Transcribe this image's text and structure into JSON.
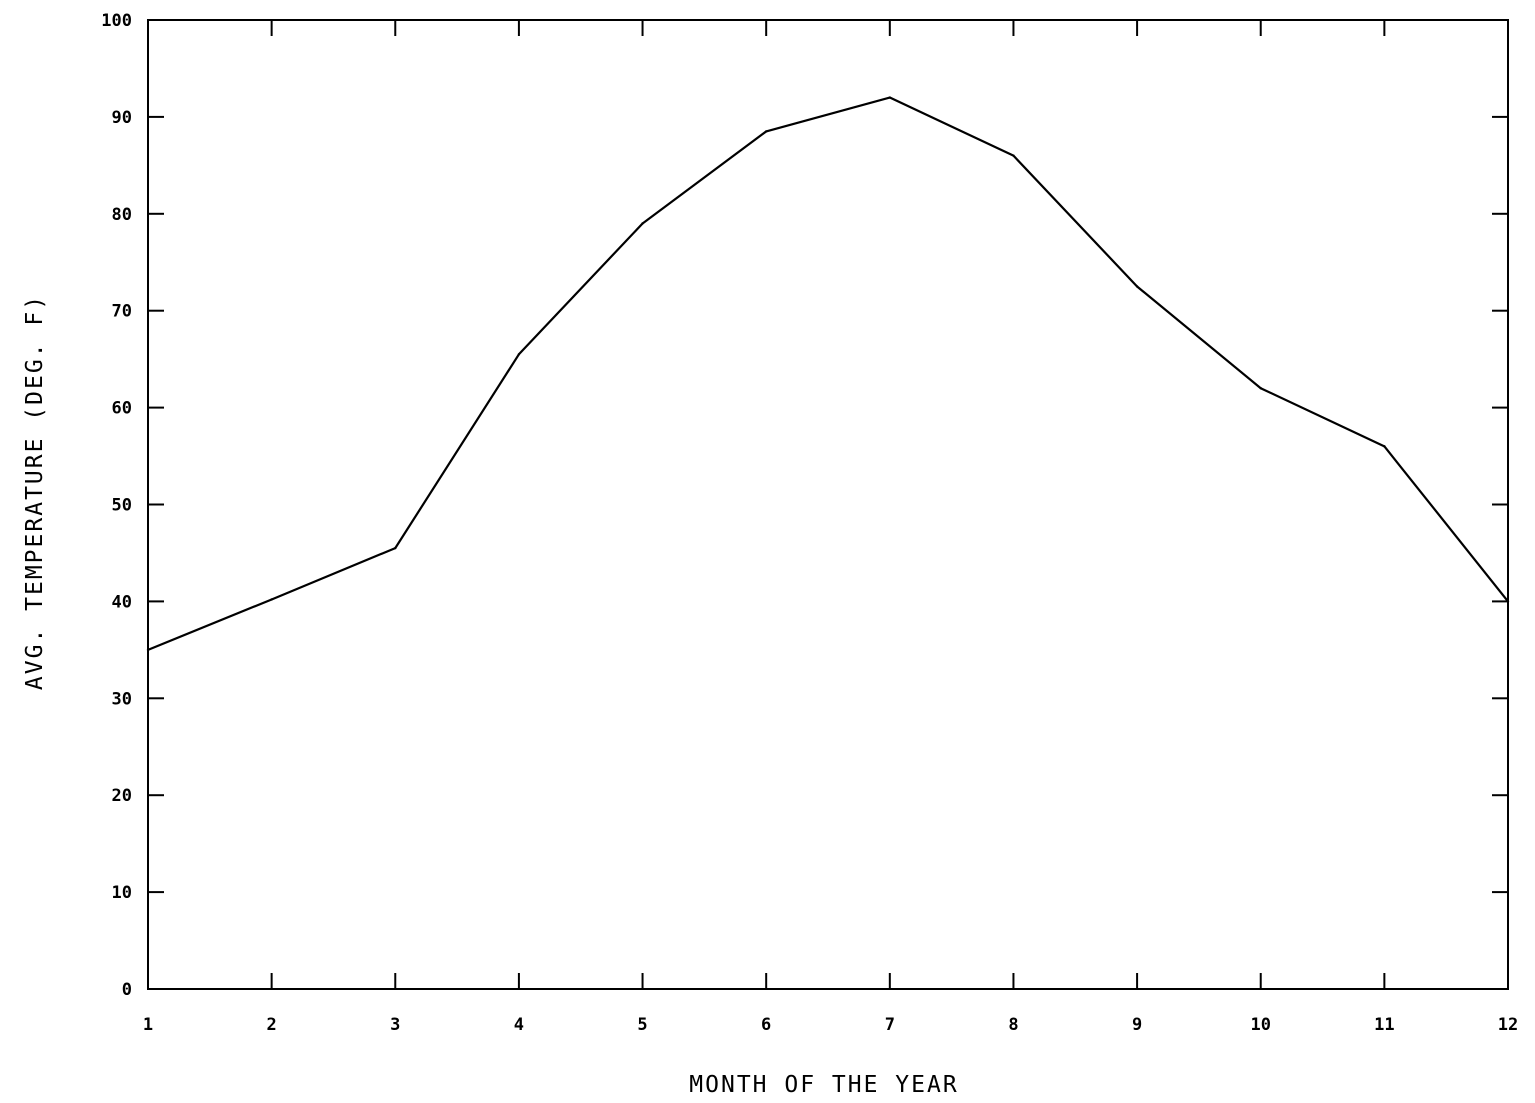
{
  "chart_data": {
    "type": "line",
    "title": "",
    "xlabel": "MONTH OF THE YEAR",
    "ylabel": "AVG.  TEMPERATURE  (DEG.  F)",
    "xlim": [
      1,
      12
    ],
    "ylim": [
      0,
      100
    ],
    "x_ticks": [
      1,
      2,
      3,
      4,
      5,
      6,
      7,
      8,
      9,
      10,
      11,
      12
    ],
    "y_ticks": [
      0,
      10,
      20,
      30,
      40,
      50,
      60,
      70,
      80,
      90,
      100
    ],
    "grid": false,
    "legend": "none",
    "series": [
      {
        "x": [
          1,
          2,
          3,
          4,
          5,
          6,
          7,
          8,
          9,
          10,
          11,
          12
        ],
        "values": [
          35,
          40.2,
          45.5,
          65.5,
          79,
          88.5,
          92,
          86,
          72.5,
          62,
          56,
          40
        ]
      }
    ],
    "colors": {
      "line": "#000000",
      "axes": "#000000",
      "background": "#ffffff"
    }
  }
}
